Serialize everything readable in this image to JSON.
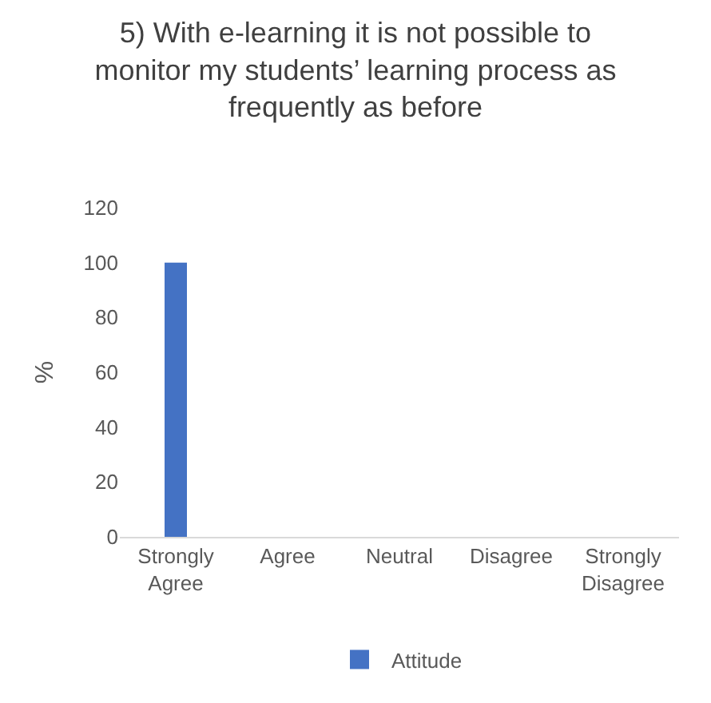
{
  "chart_data": {
    "type": "bar",
    "title": "5) With e-learning it is not possible to monitor my students’ learning process as frequently as before",
    "ylabel": "%",
    "categories": [
      "Strongly Agree",
      "Agree",
      "Neutral",
      "Disagree",
      "Strongly Disagree"
    ],
    "series": [
      {
        "name": "Attitude",
        "color": "#4472c4",
        "values": [
          100,
          0,
          0,
          0,
          0
        ]
      }
    ],
    "ylim": [
      0,
      120
    ],
    "yticks": [
      0,
      20,
      40,
      60,
      80,
      100,
      120
    ],
    "grid": false,
    "legend": "bottom"
  }
}
